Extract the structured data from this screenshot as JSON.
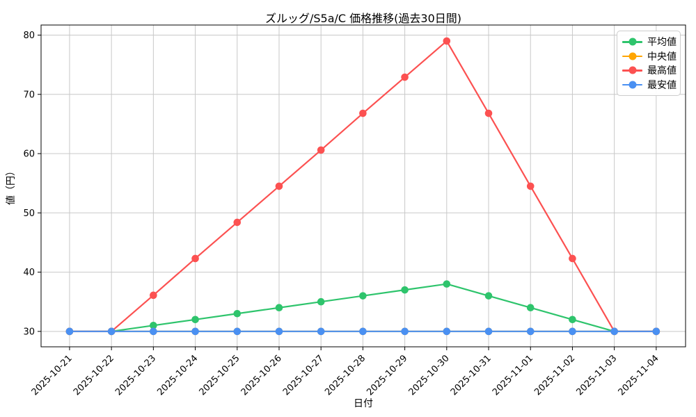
{
  "figure": {
    "title": "ズルッグ/S5a/C 価格推移(過去30日間)",
    "xlabel": "日付",
    "ylabel": "値（円）"
  },
  "chart_data": {
    "type": "line",
    "title": "ズルッグ/S5a/C 価格推移(過去30日間)",
    "xlabel": "日付",
    "ylabel": "値（円）",
    "x": [
      "2025-10-21",
      "2025-10-22",
      "2025-10-23",
      "2025-10-24",
      "2025-10-25",
      "2025-10-26",
      "2025-10-27",
      "2025-10-28",
      "2025-10-29",
      "2025-10-30",
      "2025-10-31",
      "2025-11-01",
      "2025-11-02",
      "2025-11-03",
      "2025-11-04"
    ],
    "series": [
      {
        "name": "平均値",
        "color": "#2ec46c",
        "values": [
          30,
          30,
          31,
          32,
          33,
          34,
          35,
          36,
          37,
          38,
          36,
          34,
          32,
          30,
          30
        ]
      },
      {
        "name": "中央値",
        "color": "#ffa502",
        "values": [
          30,
          30,
          30,
          30,
          30,
          30,
          30,
          30,
          30,
          30,
          30,
          30,
          30,
          30,
          30
        ]
      },
      {
        "name": "最高値",
        "color": "#fc5151",
        "values": [
          30,
          30,
          36.1,
          42.3,
          48.4,
          54.5,
          60.6,
          66.8,
          72.9,
          79,
          66.8,
          54.5,
          42.3,
          30,
          30
        ]
      },
      {
        "name": "最安値",
        "color": "#4a90f2",
        "values": [
          30,
          30,
          30,
          30,
          30,
          30,
          30,
          30,
          30,
          30,
          30,
          30,
          30,
          30,
          30
        ]
      }
    ],
    "yticks": [
      30,
      40,
      50,
      60,
      70,
      80
    ],
    "ylim": [
      27.4,
      81.7
    ],
    "xlim_categories": [
      -0.68,
      14.7
    ],
    "grid": true,
    "legend_position": "upper right",
    "colors": {
      "grid": "#c8c8c8",
      "spine": "#000000",
      "text": "#000000",
      "background": "#ffffff"
    }
  }
}
